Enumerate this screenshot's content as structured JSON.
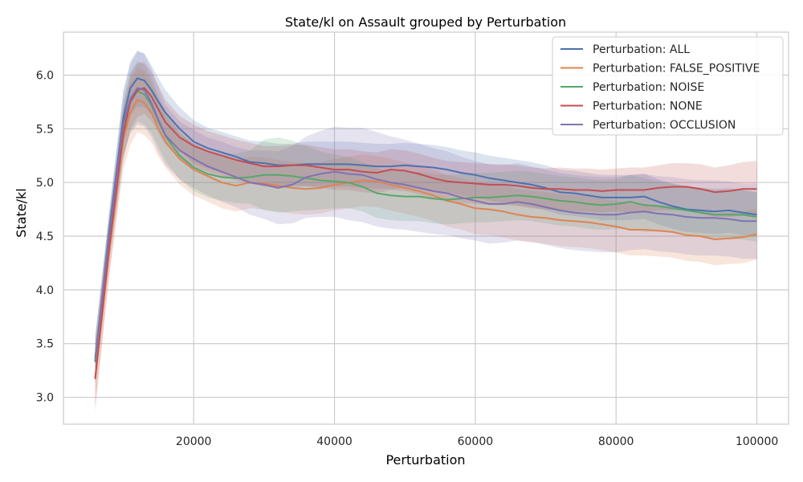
{
  "chart_data": {
    "type": "line",
    "title": "State/kl on Assault grouped by Perturbation",
    "xlabel": "Perturbation",
    "ylabel": "State/kl",
    "xlim": [
      1500,
      104500
    ],
    "ylim": [
      2.75,
      6.4
    ],
    "xticks": [
      20000,
      40000,
      60000,
      80000,
      100000
    ],
    "yticks": [
      3.0,
      3.5,
      4.0,
      4.5,
      5.0,
      5.5,
      6.0
    ],
    "grid": true,
    "legend_position": "top-right",
    "x": [
      6000,
      8000,
      10000,
      11000,
      12000,
      13000,
      14000,
      15000,
      16000,
      18000,
      20000,
      22000,
      24000,
      26000,
      28000,
      30000,
      32000,
      34000,
      36000,
      38000,
      40000,
      42000,
      44000,
      46000,
      48000,
      50000,
      52000,
      54000,
      56000,
      58000,
      60000,
      62000,
      64000,
      66000,
      68000,
      70000,
      72000,
      74000,
      76000,
      78000,
      80000,
      82000,
      84000,
      86000,
      88000,
      90000,
      92000,
      94000,
      96000,
      98000,
      100000
    ],
    "series": [
      {
        "name": "Perturbation: ALL",
        "color": "#4c72b0",
        "values": [
          3.33,
          4.55,
          5.6,
          5.88,
          5.97,
          5.95,
          5.86,
          5.75,
          5.65,
          5.5,
          5.38,
          5.32,
          5.28,
          5.24,
          5.19,
          5.18,
          5.16,
          5.16,
          5.17,
          5.17,
          5.17,
          5.17,
          5.16,
          5.15,
          5.15,
          5.16,
          5.15,
          5.14,
          5.12,
          5.09,
          5.07,
          5.04,
          5.02,
          5.0,
          4.98,
          4.95,
          4.91,
          4.9,
          4.88,
          4.86,
          4.86,
          4.86,
          4.87,
          4.82,
          4.78,
          4.75,
          4.74,
          4.73,
          4.74,
          4.72,
          4.7
        ],
        "band": [
          0.2,
          0.18,
          0.24,
          0.25,
          0.26,
          0.25,
          0.23,
          0.22,
          0.21,
          0.2,
          0.2,
          0.19,
          0.19,
          0.19,
          0.2,
          0.2,
          0.2,
          0.2,
          0.21,
          0.21,
          0.21,
          0.21,
          0.21,
          0.21,
          0.21,
          0.21,
          0.21,
          0.21,
          0.21,
          0.21,
          0.21,
          0.21,
          0.21,
          0.21,
          0.21,
          0.21,
          0.21,
          0.21,
          0.21,
          0.21,
          0.21,
          0.21,
          0.21,
          0.21,
          0.21,
          0.21,
          0.21,
          0.21,
          0.21,
          0.21,
          0.21
        ]
      },
      {
        "name": "Perturbation: FALSE_POSITIVE",
        "color": "#dd8452",
        "values": [
          3.18,
          4.35,
          5.4,
          5.65,
          5.77,
          5.74,
          5.65,
          5.5,
          5.38,
          5.22,
          5.12,
          5.06,
          5.0,
          4.97,
          5.0,
          4.99,
          4.97,
          4.95,
          4.94,
          4.95,
          4.98,
          5.0,
          5.02,
          5.01,
          4.98,
          4.95,
          4.92,
          4.88,
          4.83,
          4.8,
          4.76,
          4.75,
          4.73,
          4.7,
          4.68,
          4.67,
          4.65,
          4.64,
          4.63,
          4.61,
          4.59,
          4.56,
          4.56,
          4.55,
          4.54,
          4.51,
          4.5,
          4.47,
          4.48,
          4.49,
          4.52
        ],
        "band": [
          0.25,
          0.22,
          0.28,
          0.3,
          0.3,
          0.3,
          0.28,
          0.26,
          0.24,
          0.24,
          0.24,
          0.24,
          0.24,
          0.24,
          0.24,
          0.24,
          0.24,
          0.24,
          0.24,
          0.24,
          0.24,
          0.24,
          0.24,
          0.24,
          0.24,
          0.24,
          0.24,
          0.24,
          0.24,
          0.24,
          0.24,
          0.24,
          0.24,
          0.24,
          0.24,
          0.24,
          0.24,
          0.24,
          0.24,
          0.24,
          0.24,
          0.24,
          0.24,
          0.24,
          0.24,
          0.24,
          0.24,
          0.24,
          0.24,
          0.24,
          0.24
        ]
      },
      {
        "name": "Perturbation: NOISE",
        "color": "#55a868",
        "values": [
          3.35,
          4.5,
          5.5,
          5.75,
          5.85,
          5.82,
          5.72,
          5.57,
          5.43,
          5.25,
          5.14,
          5.08,
          5.05,
          5.04,
          5.05,
          5.07,
          5.07,
          5.06,
          5.04,
          5.02,
          5.01,
          5.0,
          4.96,
          4.9,
          4.88,
          4.87,
          4.87,
          4.85,
          4.84,
          4.85,
          4.86,
          4.86,
          4.87,
          4.88,
          4.87,
          4.85,
          4.83,
          4.82,
          4.8,
          4.79,
          4.8,
          4.82,
          4.79,
          4.78,
          4.76,
          4.74,
          4.72,
          4.7,
          4.7,
          4.7,
          4.68
        ],
        "band": [
          0.22,
          0.2,
          0.26,
          0.28,
          0.28,
          0.28,
          0.26,
          0.24,
          0.23,
          0.22,
          0.22,
          0.22,
          0.22,
          0.23,
          0.25,
          0.33,
          0.35,
          0.33,
          0.3,
          0.27,
          0.25,
          0.24,
          0.23,
          0.23,
          0.23,
          0.23,
          0.23,
          0.23,
          0.23,
          0.23,
          0.23,
          0.23,
          0.23,
          0.23,
          0.23,
          0.23,
          0.23,
          0.23,
          0.23,
          0.23,
          0.23,
          0.25,
          0.25,
          0.23,
          0.23,
          0.23,
          0.23,
          0.23,
          0.23,
          0.23,
          0.23
        ]
      },
      {
        "name": "Perturbation: NONE",
        "color": "#c44e52",
        "values": [
          3.17,
          4.4,
          5.45,
          5.75,
          5.86,
          5.88,
          5.8,
          5.68,
          5.56,
          5.42,
          5.34,
          5.29,
          5.25,
          5.21,
          5.18,
          5.15,
          5.15,
          5.16,
          5.16,
          5.14,
          5.12,
          5.12,
          5.1,
          5.09,
          5.12,
          5.11,
          5.08,
          5.04,
          5.01,
          5.0,
          4.99,
          4.98,
          4.98,
          4.97,
          4.95,
          4.94,
          4.94,
          4.93,
          4.93,
          4.92,
          4.93,
          4.93,
          4.93,
          4.95,
          4.96,
          4.96,
          4.94,
          4.91,
          4.92,
          4.94,
          4.94
        ],
        "band": [
          0.3,
          0.26,
          0.25,
          0.25,
          0.25,
          0.24,
          0.23,
          0.22,
          0.21,
          0.2,
          0.2,
          0.19,
          0.19,
          0.19,
          0.19,
          0.19,
          0.19,
          0.19,
          0.19,
          0.19,
          0.19,
          0.19,
          0.19,
          0.19,
          0.19,
          0.19,
          0.19,
          0.19,
          0.19,
          0.19,
          0.19,
          0.19,
          0.19,
          0.19,
          0.19,
          0.19,
          0.2,
          0.2,
          0.2,
          0.2,
          0.2,
          0.21,
          0.21,
          0.21,
          0.22,
          0.22,
          0.23,
          0.23,
          0.24,
          0.25,
          0.26
        ]
      },
      {
        "name": "Perturbation: OCCLUSION",
        "color": "#8172b3",
        "values": [
          3.37,
          4.5,
          5.55,
          5.78,
          5.88,
          5.86,
          5.74,
          5.58,
          5.44,
          5.3,
          5.22,
          5.15,
          5.1,
          5.05,
          5.0,
          4.98,
          4.95,
          4.98,
          5.05,
          5.08,
          5.1,
          5.08,
          5.07,
          5.03,
          5.0,
          4.98,
          4.95,
          4.92,
          4.9,
          4.86,
          4.83,
          4.8,
          4.8,
          4.82,
          4.8,
          4.77,
          4.74,
          4.72,
          4.71,
          4.7,
          4.7,
          4.72,
          4.73,
          4.71,
          4.7,
          4.68,
          4.67,
          4.67,
          4.66,
          4.64,
          4.64
        ],
        "band": [
          0.2,
          0.22,
          0.3,
          0.32,
          0.34,
          0.34,
          0.32,
          0.3,
          0.28,
          0.27,
          0.27,
          0.27,
          0.28,
          0.28,
          0.3,
          0.32,
          0.34,
          0.36,
          0.38,
          0.4,
          0.42,
          0.43,
          0.44,
          0.44,
          0.43,
          0.42,
          0.41,
          0.4,
          0.39,
          0.38,
          0.37,
          0.37,
          0.36,
          0.36,
          0.35,
          0.35,
          0.35,
          0.35,
          0.35,
          0.35,
          0.35,
          0.35,
          0.35,
          0.35,
          0.35,
          0.35,
          0.35,
          0.35,
          0.35,
          0.35,
          0.35
        ]
      }
    ]
  }
}
